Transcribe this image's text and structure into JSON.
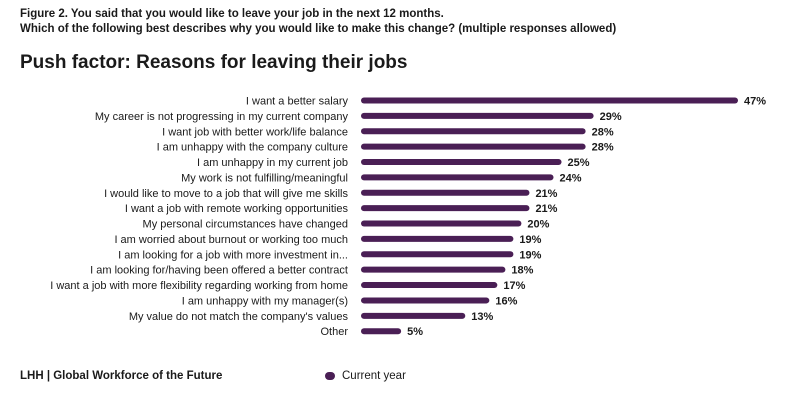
{
  "caption": {
    "line1": "Figure 2. You said that you would like to leave your job in the next 12 months.",
    "line2": "Which of the following best describes why you would like to make this change? (multiple responses allowed)"
  },
  "footer": {
    "source": "LHH | Global Workforce of the Future"
  },
  "colors": {
    "bar": "#4a1f55",
    "text": "#1a1a1a"
  },
  "chart_data": {
    "type": "bar",
    "orientation": "horizontal",
    "title": "Push factor: Reasons for leaving their jobs",
    "categories": [
      "I want a better salary",
      "My career is not progressing in my current company",
      "I want job with better work/life balance",
      "I am unhappy with the company culture",
      "I am unhappy in my current job",
      "My work is not fulfilling/meaningful",
      "I would like to move to a job that will give me skills",
      "I want a job with remote working opportunities",
      "My personal circumstances have changed",
      "I am worried about burnout or working too much",
      "I am looking for a job with more investment in...",
      "I am looking for/having been offered a better contract",
      "I want a job with more flexibility regarding working from home",
      "I am unhappy with my manager(s)",
      "My value do not match the company's values",
      "Other"
    ],
    "series": [
      {
        "name": "Current year",
        "values": [
          47,
          29,
          28,
          28,
          25,
          24,
          21,
          21,
          20,
          19,
          19,
          18,
          17,
          16,
          13,
          5
        ]
      }
    ],
    "value_labels": [
      "47%",
      "29%",
      "28%",
      "28%",
      "25%",
      "24%",
      "21%",
      "21%",
      "20%",
      "19%",
      "19%",
      "18%",
      "17%",
      "16%",
      "13%",
      "5%"
    ],
    "xlim": [
      0,
      47
    ],
    "grid": false,
    "legend_position": "bottom"
  }
}
